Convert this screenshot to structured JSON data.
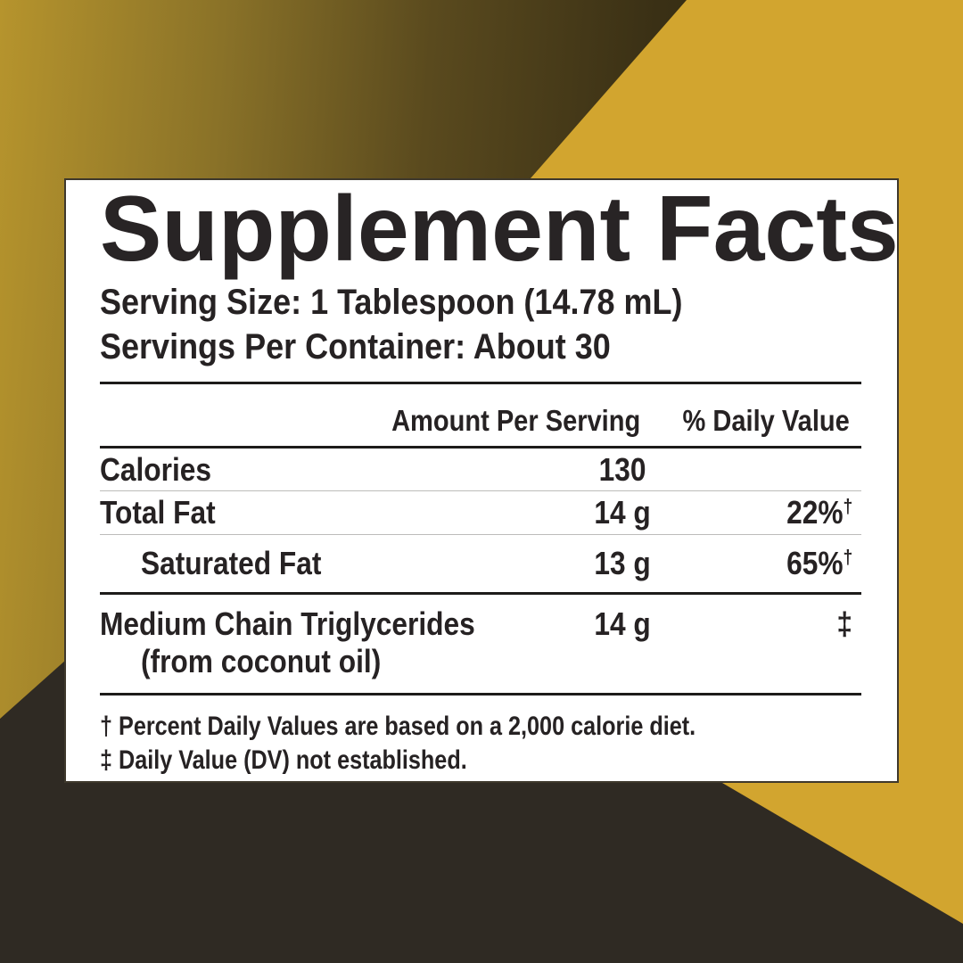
{
  "colors": {
    "gold_flat": "#d2a52f",
    "gold_gradient_start": "#b6942d",
    "gold_gradient_end": "#3a3015",
    "dark_triangle": "#2f2a23",
    "panel_background": "#ffffff",
    "panel_border": "#3e382c",
    "text": "#262223",
    "hairline": "#bdbcba"
  },
  "panel": {
    "title": "Supplement Facts",
    "serving_size": "Serving Size: 1 Tablespoon (14.78 mL)",
    "servings_per_container": "Servings Per Container: About 30",
    "columns": {
      "amount_header": "Amount Per Serving",
      "daily_value_header": "% Daily Value"
    },
    "rows": [
      {
        "name": "Calories",
        "amount": "130",
        "dv": "",
        "dv_sup": ""
      },
      {
        "name": "Total Fat",
        "amount": "14 g",
        "dv": "22%",
        "dv_sup": "†"
      },
      {
        "name": "Saturated Fat",
        "amount": "13 g",
        "dv": "65%",
        "dv_sup": "†"
      }
    ],
    "ingredient_row": {
      "name": "Medium Chain Triglycerides",
      "source": "(from coconut oil)",
      "amount": "14 g",
      "dv": "‡"
    },
    "footnotes": [
      "† Percent Daily Values are based on a 2,000 calorie diet.",
      "‡ Daily Value (DV) not established."
    ]
  }
}
